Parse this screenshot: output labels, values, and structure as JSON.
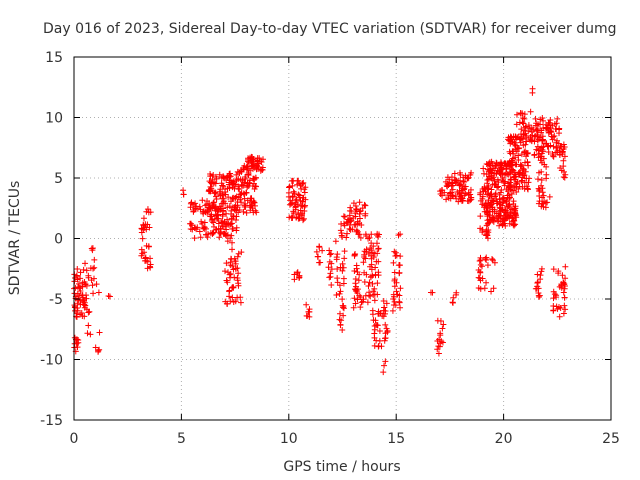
{
  "chart_data": {
    "type": "scatter",
    "title": "Day 016 of 2023, Sidereal Day-to-day VTEC variation (SDTVAR) for receiver dumg",
    "xlabel": "GPS time / hours",
    "ylabel": "SDTVAR / TECUs",
    "xlim": [
      0,
      25
    ],
    "ylim": [
      -15,
      15
    ],
    "xticks": [
      0,
      5,
      10,
      15,
      20,
      25
    ],
    "yticks": [
      -15,
      -10,
      -5,
      0,
      5,
      10,
      15
    ],
    "grid": true,
    "marker": "+",
    "series_color": "#ff0000",
    "clusters": [
      {
        "x": [
          0.0,
          0.6
        ],
        "y": [
          -6.5,
          -2.5
        ],
        "n": 60
      },
      {
        "x": [
          0.0,
          0.2
        ],
        "y": [
          -9.5,
          -8.0
        ],
        "n": 10
      },
      {
        "x": [
          0.5,
          1.2
        ],
        "y": [
          -8.0,
          -0.5
        ],
        "n": 25
      },
      {
        "x": [
          1.0,
          1.2
        ],
        "y": [
          -9.8,
          -8.8
        ],
        "n": 4
      },
      {
        "x": [
          1.6,
          1.7
        ],
        "y": [
          -5.0,
          -4.6
        ],
        "n": 2
      },
      {
        "x": [
          3.1,
          3.6
        ],
        "y": [
          -2.5,
          2.5
        ],
        "n": 35
      },
      {
        "x": [
          5.0,
          5.2
        ],
        "y": [
          3.6,
          4.0
        ],
        "n": 3
      },
      {
        "x": [
          5.4,
          6.2
        ],
        "y": [
          -0.3,
          3.2
        ],
        "n": 45
      },
      {
        "x": [
          6.2,
          7.6
        ],
        "y": [
          0.0,
          5.5
        ],
        "n": 190
      },
      {
        "x": [
          7.0,
          7.8
        ],
        "y": [
          -5.5,
          0.0
        ],
        "n": 50
      },
      {
        "x": [
          7.6,
          8.5
        ],
        "y": [
          2.0,
          6.0
        ],
        "n": 90
      },
      {
        "x": [
          8.0,
          8.8
        ],
        "y": [
          5.5,
          6.8
        ],
        "n": 35
      },
      {
        "x": [
          10.0,
          10.8
        ],
        "y": [
          1.5,
          4.8
        ],
        "n": 70
      },
      {
        "x": [
          10.2,
          10.6
        ],
        "y": [
          -3.5,
          -2.5
        ],
        "n": 8
      },
      {
        "x": [
          10.8,
          11.0
        ],
        "y": [
          -6.5,
          -5.0
        ],
        "n": 8
      },
      {
        "x": [
          11.3,
          11.6
        ],
        "y": [
          -2.0,
          -0.5
        ],
        "n": 8
      },
      {
        "x": [
          11.8,
          12.2
        ],
        "y": [
          -4.0,
          0.0
        ],
        "n": 12
      },
      {
        "x": [
          12.2,
          12.6
        ],
        "y": [
          -8.2,
          -1.0
        ],
        "n": 30
      },
      {
        "x": [
          12.4,
          13.6
        ],
        "y": [
          0.0,
          3.0
        ],
        "n": 55
      },
      {
        "x": [
          13.0,
          13.5
        ],
        "y": [
          -6.0,
          -1.0
        ],
        "n": 30
      },
      {
        "x": [
          13.5,
          14.2
        ],
        "y": [
          -5.5,
          0.5
        ],
        "n": 60
      },
      {
        "x": [
          13.9,
          14.6
        ],
        "y": [
          -9.0,
          -5.0
        ],
        "n": 40
      },
      {
        "x": [
          14.3,
          14.5
        ],
        "y": [
          -11.5,
          -9.8
        ],
        "n": 3
      },
      {
        "x": [
          14.8,
          15.2
        ],
        "y": [
          -6.0,
          -1.0
        ],
        "n": 30
      },
      {
        "x": [
          15.1,
          15.3
        ],
        "y": [
          0.2,
          0.6
        ],
        "n": 2
      },
      {
        "x": [
          16.6,
          16.8
        ],
        "y": [
          -4.5,
          -4.2
        ],
        "n": 2
      },
      {
        "x": [
          16.9,
          17.2
        ],
        "y": [
          -9.5,
          -6.5
        ],
        "n": 15
      },
      {
        "x": [
          17.0,
          17.3
        ],
        "y": [
          3.5,
          4.0
        ],
        "n": 6
      },
      {
        "x": [
          17.6,
          17.8
        ],
        "y": [
          -5.5,
          -4.0
        ],
        "n": 5
      },
      {
        "x": [
          17.3,
          18.5
        ],
        "y": [
          3.0,
          5.5
        ],
        "n": 80
      },
      {
        "x": [
          18.8,
          19.6
        ],
        "y": [
          -4.5,
          -1.5
        ],
        "n": 25
      },
      {
        "x": [
          18.9,
          19.3
        ],
        "y": [
          0.0,
          6.0
        ],
        "n": 40
      },
      {
        "x": [
          19.2,
          20.6
        ],
        "y": [
          1.0,
          6.5
        ],
        "n": 260
      },
      {
        "x": [
          20.2,
          21.2
        ],
        "y": [
          4.0,
          8.5
        ],
        "n": 110
      },
      {
        "x": [
          20.6,
          21.4
        ],
        "y": [
          8.0,
          10.5
        ],
        "n": 35
      },
      {
        "x": [
          21.2,
          21.4
        ],
        "y": [
          12.0,
          12.5
        ],
        "n": 2
      },
      {
        "x": [
          21.4,
          22.6
        ],
        "y": [
          6.5,
          10.0
        ],
        "n": 90
      },
      {
        "x": [
          21.6,
          22.2
        ],
        "y": [
          2.5,
          6.5
        ],
        "n": 30
      },
      {
        "x": [
          21.5,
          21.8
        ],
        "y": [
          -5.0,
          -2.0
        ],
        "n": 15
      },
      {
        "x": [
          22.3,
          22.9
        ],
        "y": [
          -6.5,
          -2.2
        ],
        "n": 35
      },
      {
        "x": [
          22.6,
          22.9
        ],
        "y": [
          5.0,
          7.8
        ],
        "n": 20
      }
    ]
  }
}
